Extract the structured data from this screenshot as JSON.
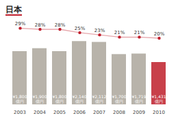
{
  "chart_data": {
    "type": "bar",
    "title": "日本",
    "categories": [
      "2003",
      "2004",
      "2005",
      "2006",
      "2007",
      "2008",
      "2009",
      "2010"
    ],
    "series": [
      {
        "type": "bar",
        "colors": [
          "#b8b3aa",
          "#b8b3aa",
          "#b8b3aa",
          "#b8b3aa",
          "#b8b3aa",
          "#b8b3aa",
          "#b8b3aa",
          "#c8404a"
        ],
        "values": [
          1800,
          1900,
          1800,
          2140,
          2112,
          1700,
          1719,
          1431
        ],
        "value_labels": [
          "¥1,800\n億円",
          "¥1,900\n億円",
          "¥1,800\n億円",
          "¥2,140\n億円",
          "¥2,112\n億円",
          "¥1,700\n億円",
          "¥1,719\n億円",
          "¥1,431\n億円"
        ]
      },
      {
        "type": "line",
        "axis": "y2",
        "color": "#c0202e",
        "marker": "circle",
        "values": [
          29,
          28,
          28,
          25,
          23,
          21,
          21,
          20
        ],
        "value_labels": [
          "29%",
          "28%",
          "28%",
          "25%",
          "23%",
          "21%",
          "21%",
          "20%"
        ]
      }
    ],
    "ylim": [
      0,
      3000
    ],
    "y2lim": [
      -40,
      40
    ],
    "data_labels": true,
    "tick_labels": "x"
  }
}
